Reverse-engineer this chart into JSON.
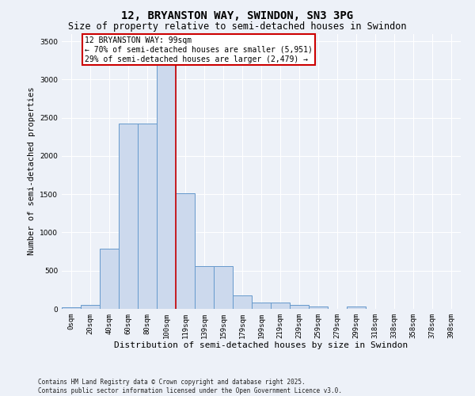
{
  "title_line1": "12, BRYANSTON WAY, SWINDON, SN3 3PG",
  "title_line2": "Size of property relative to semi-detached houses in Swindon",
  "xlabel": "Distribution of semi-detached houses by size in Swindon",
  "ylabel": "Number of semi-detached properties",
  "bar_labels": [
    "0sqm",
    "20sqm",
    "40sqm",
    "60sqm",
    "80sqm",
    "100sqm",
    "119sqm",
    "139sqm",
    "159sqm",
    "179sqm",
    "199sqm",
    "219sqm",
    "239sqm",
    "259sqm",
    "279sqm",
    "299sqm",
    "318sqm",
    "338sqm",
    "358sqm",
    "378sqm",
    "398sqm"
  ],
  "bar_values": [
    20,
    55,
    790,
    2420,
    2420,
    3240,
    1510,
    560,
    560,
    175,
    80,
    80,
    55,
    35,
    0,
    35,
    0,
    0,
    0,
    0,
    0
  ],
  "bar_color": "#ccd9ed",
  "bar_edge_color": "#6699cc",
  "background_color": "#edf1f8",
  "grid_color": "#ffffff",
  "red_line_x": 5.5,
  "annotation_text_line1": "12 BRYANSTON WAY: 99sqm",
  "annotation_text_line2": "← 70% of semi-detached houses are smaller (5,951)",
  "annotation_text_line3": "29% of semi-detached houses are larger (2,479) →",
  "annotation_box_color": "#ffffff",
  "annotation_box_edge": "#cc0000",
  "footer_line1": "Contains HM Land Registry data © Crown copyright and database right 2025.",
  "footer_line2": "Contains public sector information licensed under the Open Government Licence v3.0.",
  "ylim": [
    0,
    3600
  ],
  "yticks": [
    0,
    500,
    1000,
    1500,
    2000,
    2500,
    3000,
    3500
  ],
  "title1_fontsize": 10,
  "title2_fontsize": 8.5,
  "ylabel_fontsize": 7.5,
  "xlabel_fontsize": 8,
  "tick_fontsize": 6.5,
  "footer_fontsize": 5.5,
  "annot_fontsize": 7
}
